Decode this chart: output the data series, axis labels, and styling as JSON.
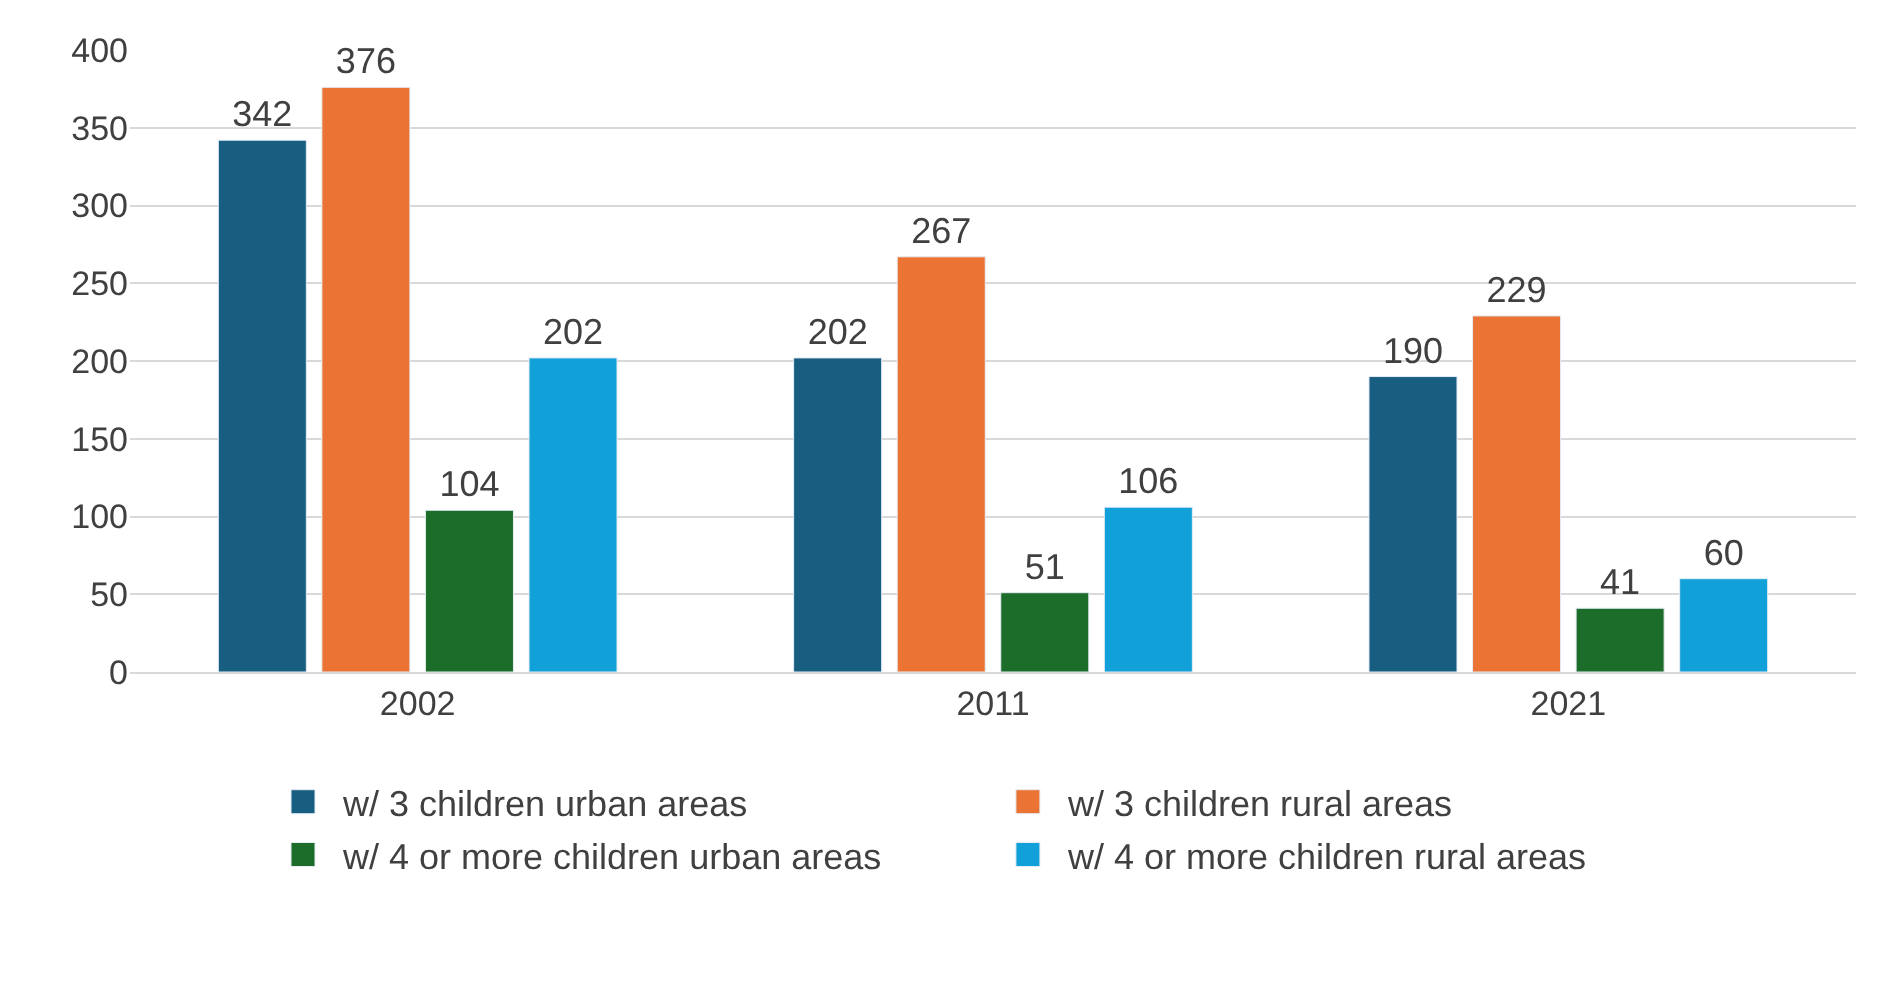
{
  "chart_data": {
    "type": "bar",
    "categories": [
      "2002",
      "2011",
      "2021"
    ],
    "series": [
      {
        "name": "w/ 3 children urban areas",
        "color": "#185e80",
        "values": [
          342,
          202,
          190
        ]
      },
      {
        "name": "w/ 3 children rural areas",
        "color": "#eb7434",
        "values": [
          376,
          267,
          229
        ]
      },
      {
        "name": "w/ 4 or more children urban areas",
        "color": "#1d6d2a",
        "values": [
          104,
          51,
          41
        ]
      },
      {
        "name": "w/ 4 or more children rural areas",
        "color": "#12a0d8",
        "values": [
          202,
          106,
          60
        ]
      }
    ],
    "ylim": [
      0,
      400
    ],
    "yticks": [
      0,
      50,
      100,
      150,
      200,
      250,
      300,
      350,
      400
    ],
    "grid": "y",
    "legend": "bottom",
    "data_labels": true
  }
}
